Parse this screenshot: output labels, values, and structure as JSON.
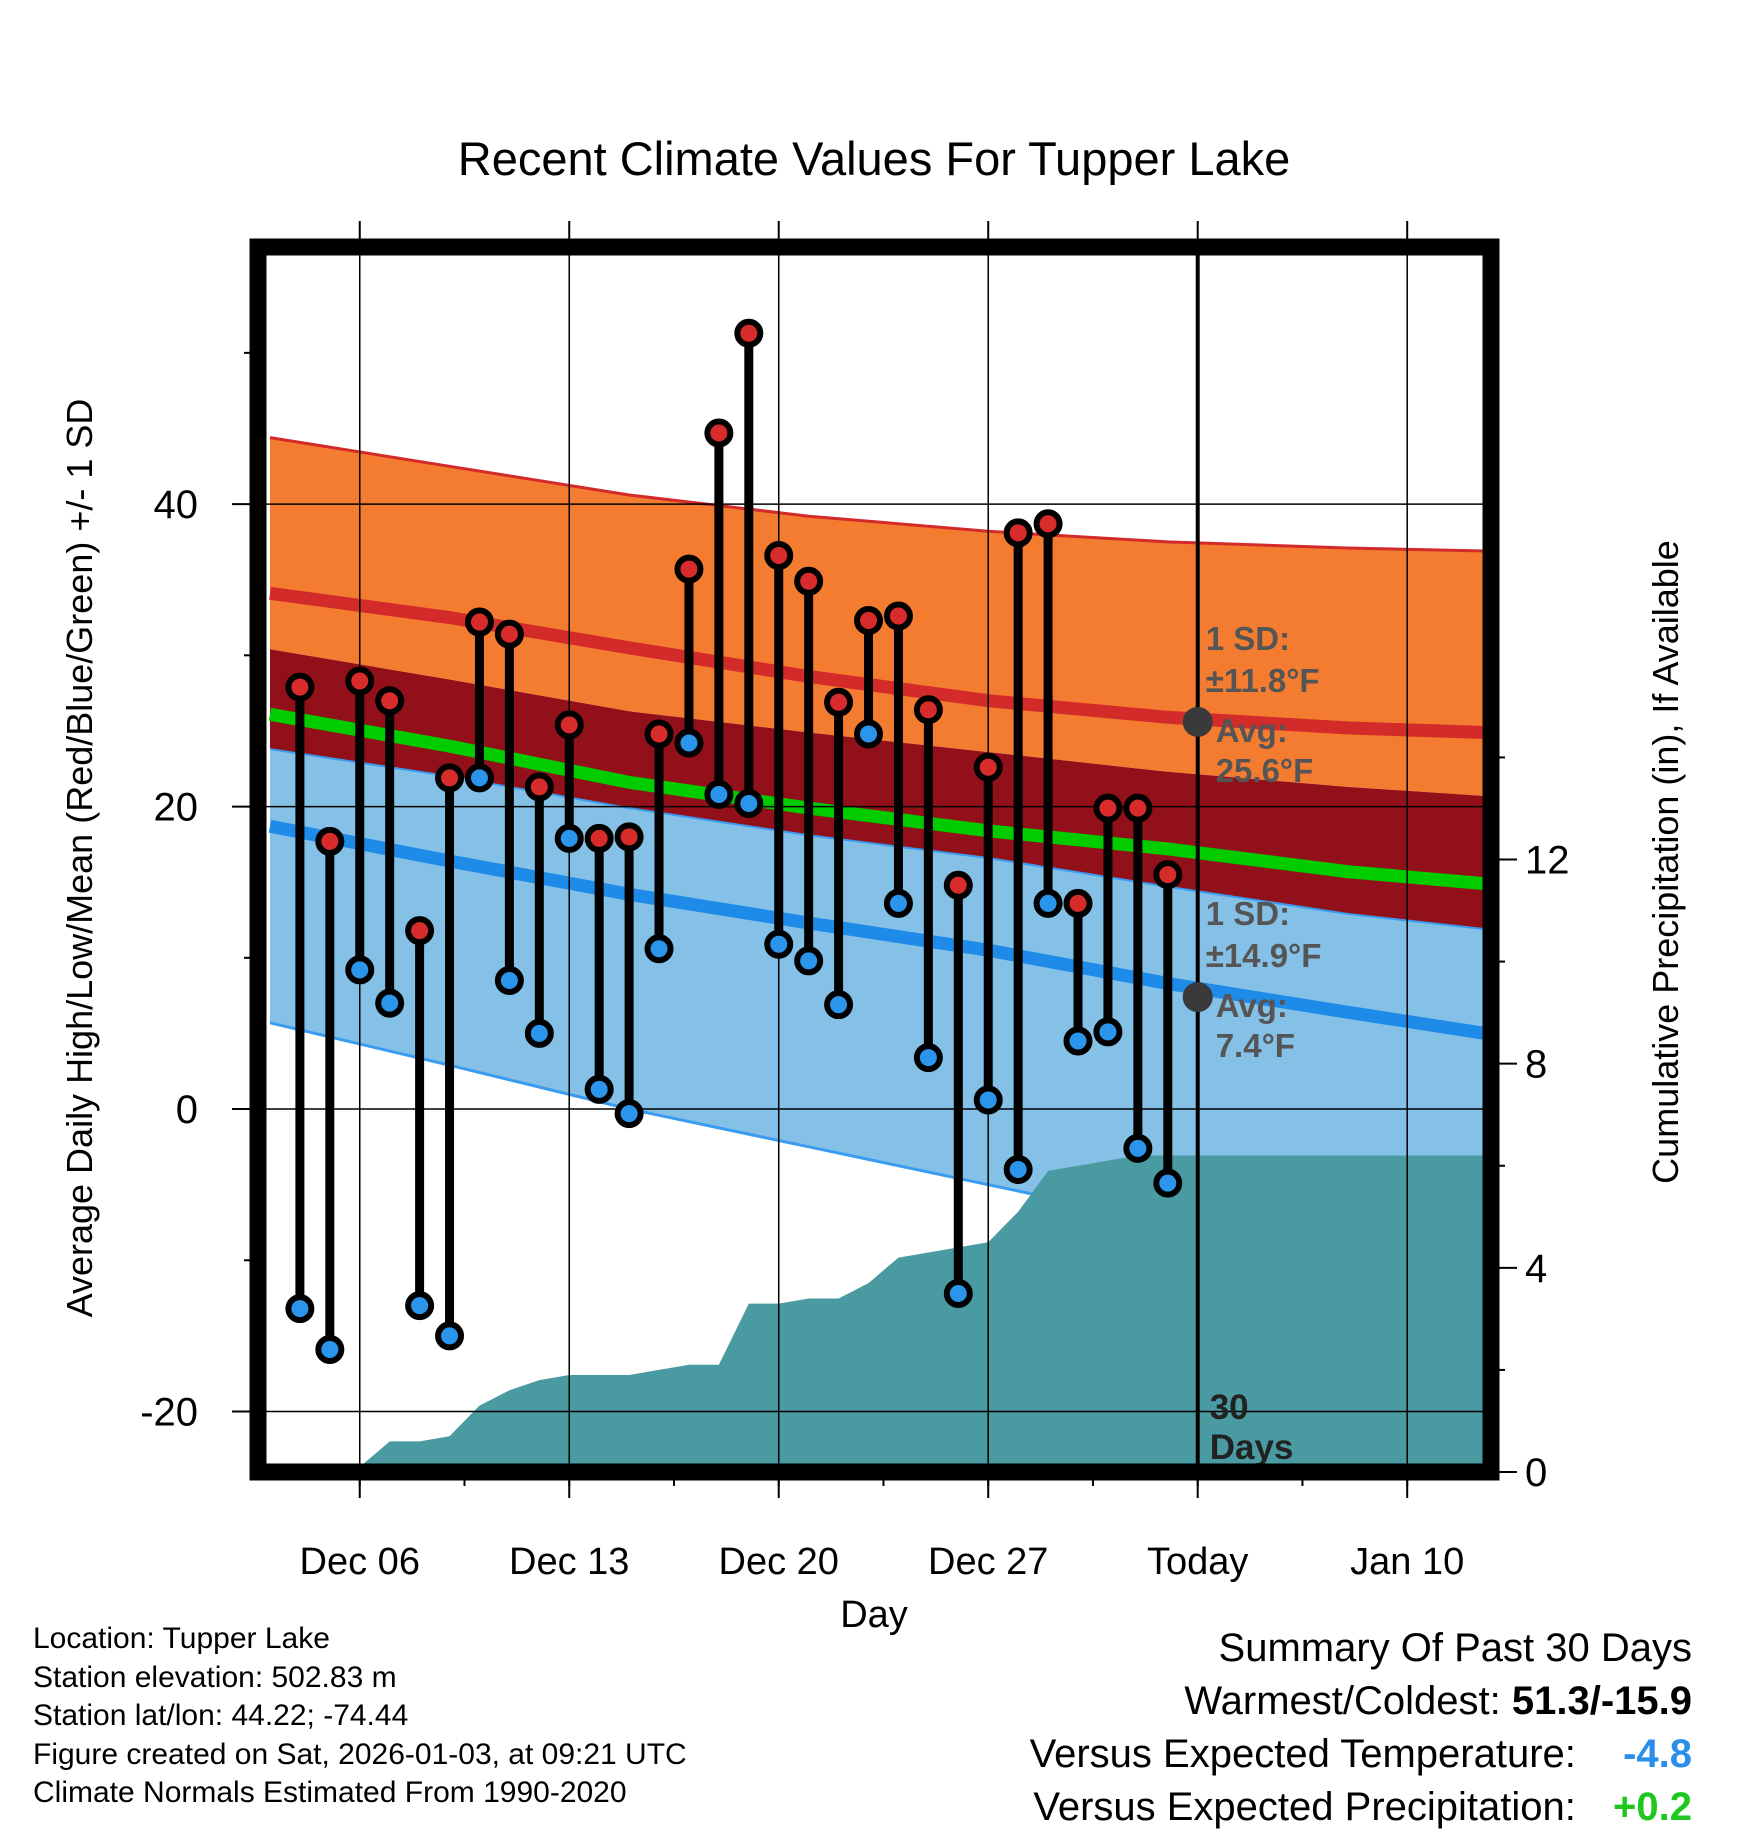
{
  "chart_data": {
    "type": "line",
    "title": "Recent Climate Values For Tupper Lake",
    "xlabel": "Day",
    "ylabel": "Average Daily High/Low/Mean (Red/Blue/Green) +/- 1 SD",
    "y2label": "Cumulative Precipitation (in), If Available",
    "x_tick_labels": [
      "Dec 06",
      "Dec 13",
      "Dec 20",
      "Dec 27",
      "Today",
      "Jan 10"
    ],
    "x_tick_days": [
      3,
      10,
      17,
      24,
      31,
      38
    ],
    "xlim": [
      -0.4,
      40.8
    ],
    "ylim": [
      -24,
      57
    ],
    "y_ticks": [
      -20,
      0,
      20,
      40
    ],
    "y2lim": [
      0,
      24
    ],
    "y2_ticks": [
      0,
      4,
      8,
      12
    ],
    "today_day": 31,
    "today_label": "30 Days",
    "high_normal": {
      "name": "Avg High",
      "days": [
        0,
        6,
        12,
        18,
        24,
        30,
        36,
        40.6
      ],
      "values": [
        34.1,
        32.5,
        30.5,
        28.6,
        27.0,
        25.9,
        25.2,
        24.9
      ]
    },
    "high_sd_upper": {
      "days": [
        0,
        6,
        12,
        18,
        24,
        30,
        36,
        40.6
      ],
      "values": [
        44.4,
        42.5,
        40.6,
        39.2,
        38.2,
        37.5,
        37.1,
        36.9
      ]
    },
    "high_sd_lower": {
      "days": [
        0,
        6,
        12,
        18,
        24,
        30,
        36,
        40.6
      ],
      "values": [
        30.4,
        28.4,
        26.3,
        24.9,
        23.6,
        22.3,
        21.3,
        20.7
      ]
    },
    "mean_normal": {
      "name": "Avg Mean",
      "days": [
        0,
        6,
        12,
        18,
        24,
        30,
        36,
        40.6
      ],
      "values": [
        26.1,
        24.0,
        21.6,
        19.9,
        18.4,
        17.2,
        15.7,
        14.9
      ]
    },
    "low_normal": {
      "name": "Avg Low",
      "days": [
        0,
        6,
        12,
        18,
        24,
        30,
        36,
        40.6
      ],
      "values": [
        18.7,
        16.4,
        14.2,
        12.3,
        10.5,
        8.3,
        6.4,
        5.0
      ]
    },
    "low_sd_upper": {
      "days": [
        0,
        6,
        12,
        18,
        24,
        30,
        36,
        40.6
      ],
      "values": [
        23.8,
        22.0,
        19.9,
        18.1,
        16.6,
        14.7,
        12.9,
        11.9
      ]
    },
    "low_sd_lower": {
      "days": [
        0,
        6,
        12,
        18,
        24,
        30,
        36,
        40.6
      ],
      "values": [
        5.7,
        2.9,
        0.0,
        -2.5,
        -5.0,
        -7.5,
        -10.1,
        -11.1
      ]
    },
    "annotations": {
      "high": {
        "sd_label": "1 SD:",
        "sd_value": "±11.8°F",
        "avg_label": "Avg:",
        "avg_value": "25.6°F",
        "avg": 25.6
      },
      "low": {
        "sd_label": "1 SD:",
        "sd_value": "±14.9°F",
        "avg_label": "Avg:",
        "avg_value": "7.4°F",
        "avg": 7.4
      }
    },
    "series": [
      {
        "name": "High",
        "days": [
          1,
          2,
          3,
          4,
          5,
          6,
          7,
          8,
          9,
          10,
          11,
          12,
          13,
          14,
          15,
          16,
          17,
          18,
          19,
          20,
          21,
          22,
          23,
          24,
          25,
          26,
          27,
          28,
          29,
          30
        ],
        "values": [
          27.9,
          17.7,
          28.3,
          27.0,
          11.8,
          21.9,
          32.2,
          31.4,
          21.3,
          25.4,
          17.9,
          18.0,
          24.8,
          35.7,
          44.7,
          51.3,
          36.6,
          34.9,
          26.9,
          32.3,
          32.6,
          26.4,
          14.8,
          22.6,
          38.1,
          38.7,
          13.6,
          19.9,
          19.9,
          15.5
        ]
      },
      {
        "name": "Low",
        "days": [
          1,
          2,
          3,
          4,
          5,
          6,
          7,
          8,
          9,
          10,
          11,
          12,
          13,
          14,
          15,
          16,
          17,
          18,
          19,
          20,
          21,
          22,
          23,
          24,
          25,
          26,
          27,
          28,
          29,
          30
        ],
        "values": [
          -13.2,
          -15.9,
          9.2,
          7.0,
          -13.0,
          -15.0,
          21.9,
          8.5,
          5.0,
          17.9,
          1.3,
          -0.3,
          10.6,
          24.2,
          20.8,
          20.2,
          10.9,
          9.8,
          6.9,
          24.8,
          13.6,
          3.4,
          -12.2,
          0.6,
          -4.0,
          13.6,
          4.5,
          5.1,
          -2.6,
          -4.9
        ]
      },
      {
        "name": "Cumulative Precipitation",
        "days": [
          0,
          1,
          2,
          3,
          4,
          5,
          6,
          7,
          8,
          9,
          10,
          11,
          12,
          13,
          14,
          15,
          16,
          17,
          18,
          19,
          20,
          21,
          22,
          23,
          24,
          25,
          26,
          27,
          28,
          29,
          30,
          31,
          40.6
        ],
        "values": [
          0.0,
          0.1,
          0.1,
          0.1,
          0.6,
          0.6,
          0.7,
          1.3,
          1.6,
          1.8,
          1.9,
          1.9,
          1.9,
          2.0,
          2.1,
          2.1,
          3.3,
          3.3,
          3.4,
          3.4,
          3.7,
          4.2,
          4.3,
          4.4,
          4.5,
          5.1,
          5.9,
          6.0,
          6.1,
          6.2,
          6.2,
          6.2,
          6.2
        ]
      }
    ]
  },
  "footer": {
    "location": "Location: Tupper Lake",
    "elevation": "Station elevation: 502.83 m",
    "latlon": "Station lat/lon: 44.22; -74.44",
    "created": "Figure created on Sat, 2026-01-03, at 09:21 UTC",
    "normals": "Climate Normals Estimated From 1990-2020"
  },
  "summary": {
    "title": "Summary Of Past 30 Days",
    "warmest_coldest_label": "Warmest/Coldest:",
    "warmest_coldest_value": "51.3/-15.9",
    "temp_label": "Versus Expected Temperature:",
    "temp_value": "-4.8",
    "temp_color": "#2b8fe8",
    "precip_label": "Versus Expected Precipitation:",
    "precip_value": "+0.2",
    "precip_color": "#1ec81e"
  },
  "colors": {
    "high_band": "#f47c30",
    "high_line": "#d32a2a",
    "mid_band": "#92101a",
    "mean_line": "#00cc00",
    "low_band": "#85c1e6",
    "low_line": "#1f8be8",
    "low_edge": "#3a9cf0",
    "precip": "#4a9aa2",
    "high_marker": "#d82c2c",
    "low_marker": "#2a95ea",
    "annot_text": "#555555",
    "annot_dot": "#3a3a3a"
  }
}
